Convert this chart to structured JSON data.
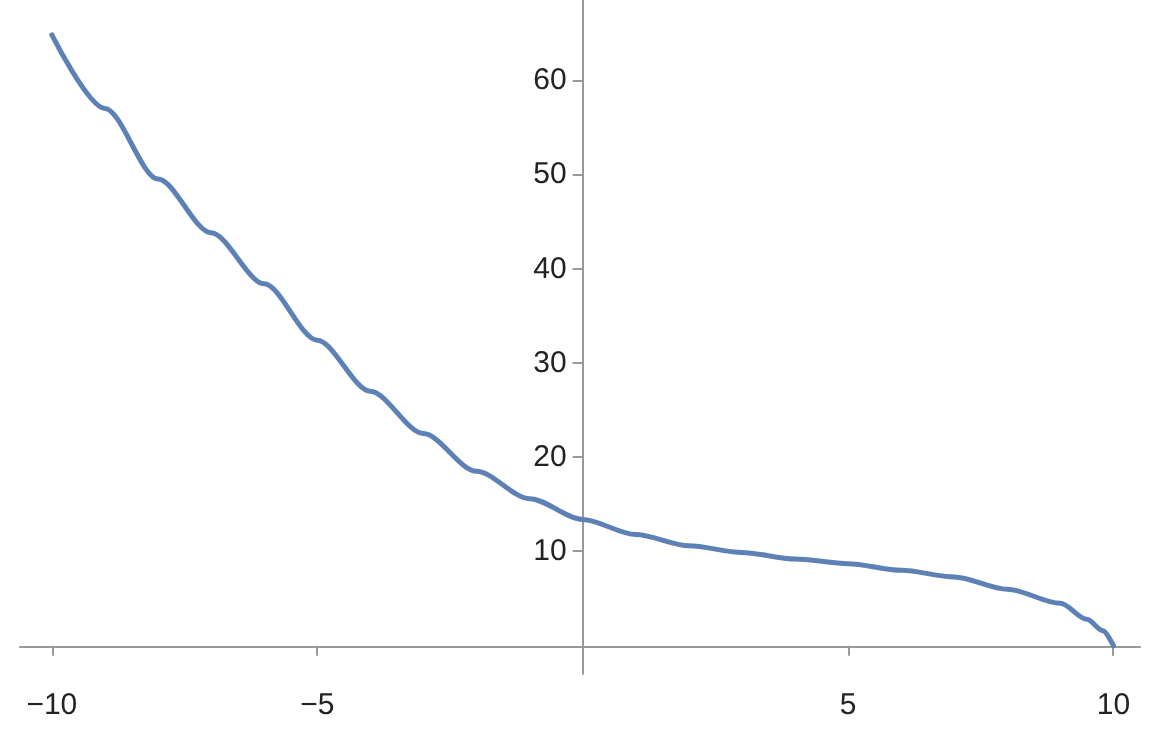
{
  "chart_data": {
    "type": "line",
    "x": [
      -10,
      -9,
      -8,
      -7,
      -6,
      -5,
      -4,
      -3,
      -2,
      -1,
      0,
      1,
      2,
      3,
      4,
      5,
      6,
      7,
      8,
      9,
      9.5,
      9.8,
      10
    ],
    "series": [
      {
        "color": "#5e81b5",
        "values": [
          64.8,
          57,
          49.5,
          43.8,
          38.4,
          32.4,
          27.0,
          22.5,
          18.5,
          15.6,
          13.4,
          11.8,
          10.6,
          9.9,
          9.2,
          8.7,
          8.0,
          7.3,
          6.0,
          4.5,
          2.8,
          1.6,
          0
        ]
      }
    ],
    "xlim": [
      -10.6,
      10.5
    ],
    "ylim": [
      -3,
      68.5
    ],
    "xticks": [
      -10,
      -5,
      5,
      10
    ],
    "yticks": [
      10,
      20,
      30,
      40,
      50,
      60
    ],
    "grid": false,
    "marker": "none",
    "line_style": "solid"
  }
}
